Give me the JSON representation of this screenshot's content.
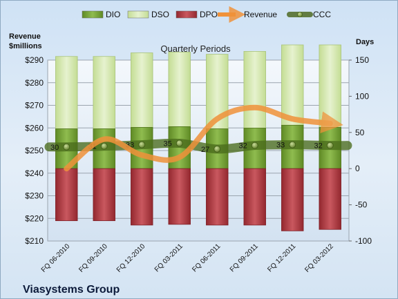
{
  "chart_data": {
    "type": "bar",
    "title": "Quarterly Periods",
    "company": "Viasystems Group",
    "left_axis_label": [
      "Revenue",
      "$millions"
    ],
    "right_axis_label": "Days",
    "left_ylim": [
      210,
      290
    ],
    "left_ticks": [
      "$210",
      "$220",
      "$230",
      "$240",
      "$250",
      "$260",
      "$270",
      "$280",
      "$290"
    ],
    "right_ylim": [
      -100,
      150
    ],
    "right_ticks": [
      "-100",
      "-50",
      "0",
      "50",
      "100",
      "150"
    ],
    "categories": [
      "FQ 06-2010",
      "FQ 09-2010",
      "FQ 12-2010",
      "FQ 03-2011",
      "FQ 06-2011",
      "FQ 09-2011",
      "FQ 12-2011",
      "FQ 03-2012"
    ],
    "grid": true,
    "legend": {
      "position": "top",
      "entries": [
        {
          "name": "DIO",
          "kind": "bar",
          "color": "#7aa63c"
        },
        {
          "name": "DSO",
          "kind": "bar",
          "color": "#d5e8b0"
        },
        {
          "name": "DPO",
          "kind": "bar",
          "color": "#b8414a"
        },
        {
          "name": "Revenue",
          "kind": "arrow",
          "color": "#f0923a"
        },
        {
          "name": "CCC",
          "kind": "line-marker",
          "color": "#4f6b24"
        }
      ]
    },
    "series": [
      {
        "name": "DIO",
        "axis": "right",
        "values": [
          55,
          55,
          57,
          58,
          55,
          56,
          60,
          57
        ]
      },
      {
        "name": "DSO",
        "axis": "right",
        "values": [
          100,
          100,
          103,
          103,
          103,
          106,
          111,
          114
        ]
      },
      {
        "name": "DPO",
        "axis": "right",
        "values": [
          -72,
          -72,
          -78,
          -77,
          -78,
          -78,
          -86,
          -84
        ]
      },
      {
        "name": "Revenue",
        "axis": "left",
        "values": [
          242,
          255,
          248,
          247,
          264,
          269,
          264,
          262
        ]
      },
      {
        "name": "CCC",
        "axis": "right",
        "values": [
          30,
          31,
          33,
          35,
          27,
          32,
          33,
          32
        ],
        "labels": [
          "30",
          "31",
          "33",
          "35",
          "27",
          "32",
          "33",
          "32"
        ]
      }
    ]
  }
}
